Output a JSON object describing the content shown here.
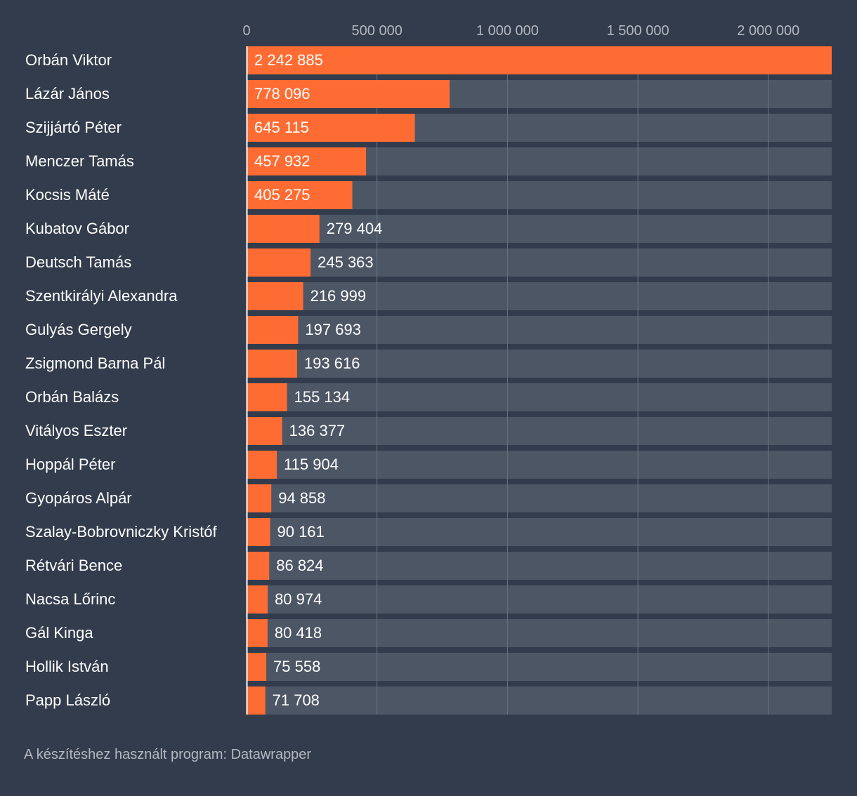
{
  "chart_data": {
    "type": "bar",
    "orientation": "horizontal",
    "categories": [
      "Orbán Viktor",
      "Lázár János",
      "Szijjártó Péter",
      "Menczer Tamás",
      "Kocsis Máté",
      "Kubatov Gábor",
      "Deutsch Tamás",
      "Szentkirályi Alexandra",
      "Gulyás Gergely",
      "Zsigmond Barna Pál",
      "Orbán Balázs",
      "Vitályos Eszter",
      "Hoppál Péter",
      "Gyopáros Alpár",
      "Szalay-Bobrovniczky Kristóf",
      "Rétvári Bence",
      "Nacsa Lőrinc",
      "Gál Kinga",
      "Hollik István",
      "Papp László"
    ],
    "values": [
      2242885,
      778096,
      645115,
      457932,
      405275,
      279404,
      245363,
      216999,
      197693,
      193616,
      155134,
      136377,
      115904,
      94858,
      90161,
      86824,
      80974,
      80418,
      75558,
      71708
    ],
    "value_labels": [
      "2 242 885",
      "778 096",
      "645 115",
      "457 932",
      "405 275",
      "279 404",
      "245 363",
      "216 999",
      "197 693",
      "193 616",
      "155 134",
      "136 377",
      "115 904",
      "94 858",
      "90 161",
      "86 824",
      "80 974",
      "80 418",
      "75 558",
      "71 708"
    ],
    "xlim": [
      0,
      2242885
    ],
    "xticks": [
      0,
      500000,
      1000000,
      1500000,
      2000000
    ],
    "xtick_labels": [
      "0",
      "500 000",
      "1 000 000",
      "1 500 000",
      "2 000 000"
    ],
    "grid": true,
    "colors": {
      "background": "#333c4c",
      "bar": "#ff6c33",
      "track": "#4d5665",
      "grid": "#6b7382",
      "label": "#ffffff",
      "tick": "#b3b8c0"
    }
  },
  "footer": {
    "text": "A készítéshez használt program: Datawrapper"
  }
}
